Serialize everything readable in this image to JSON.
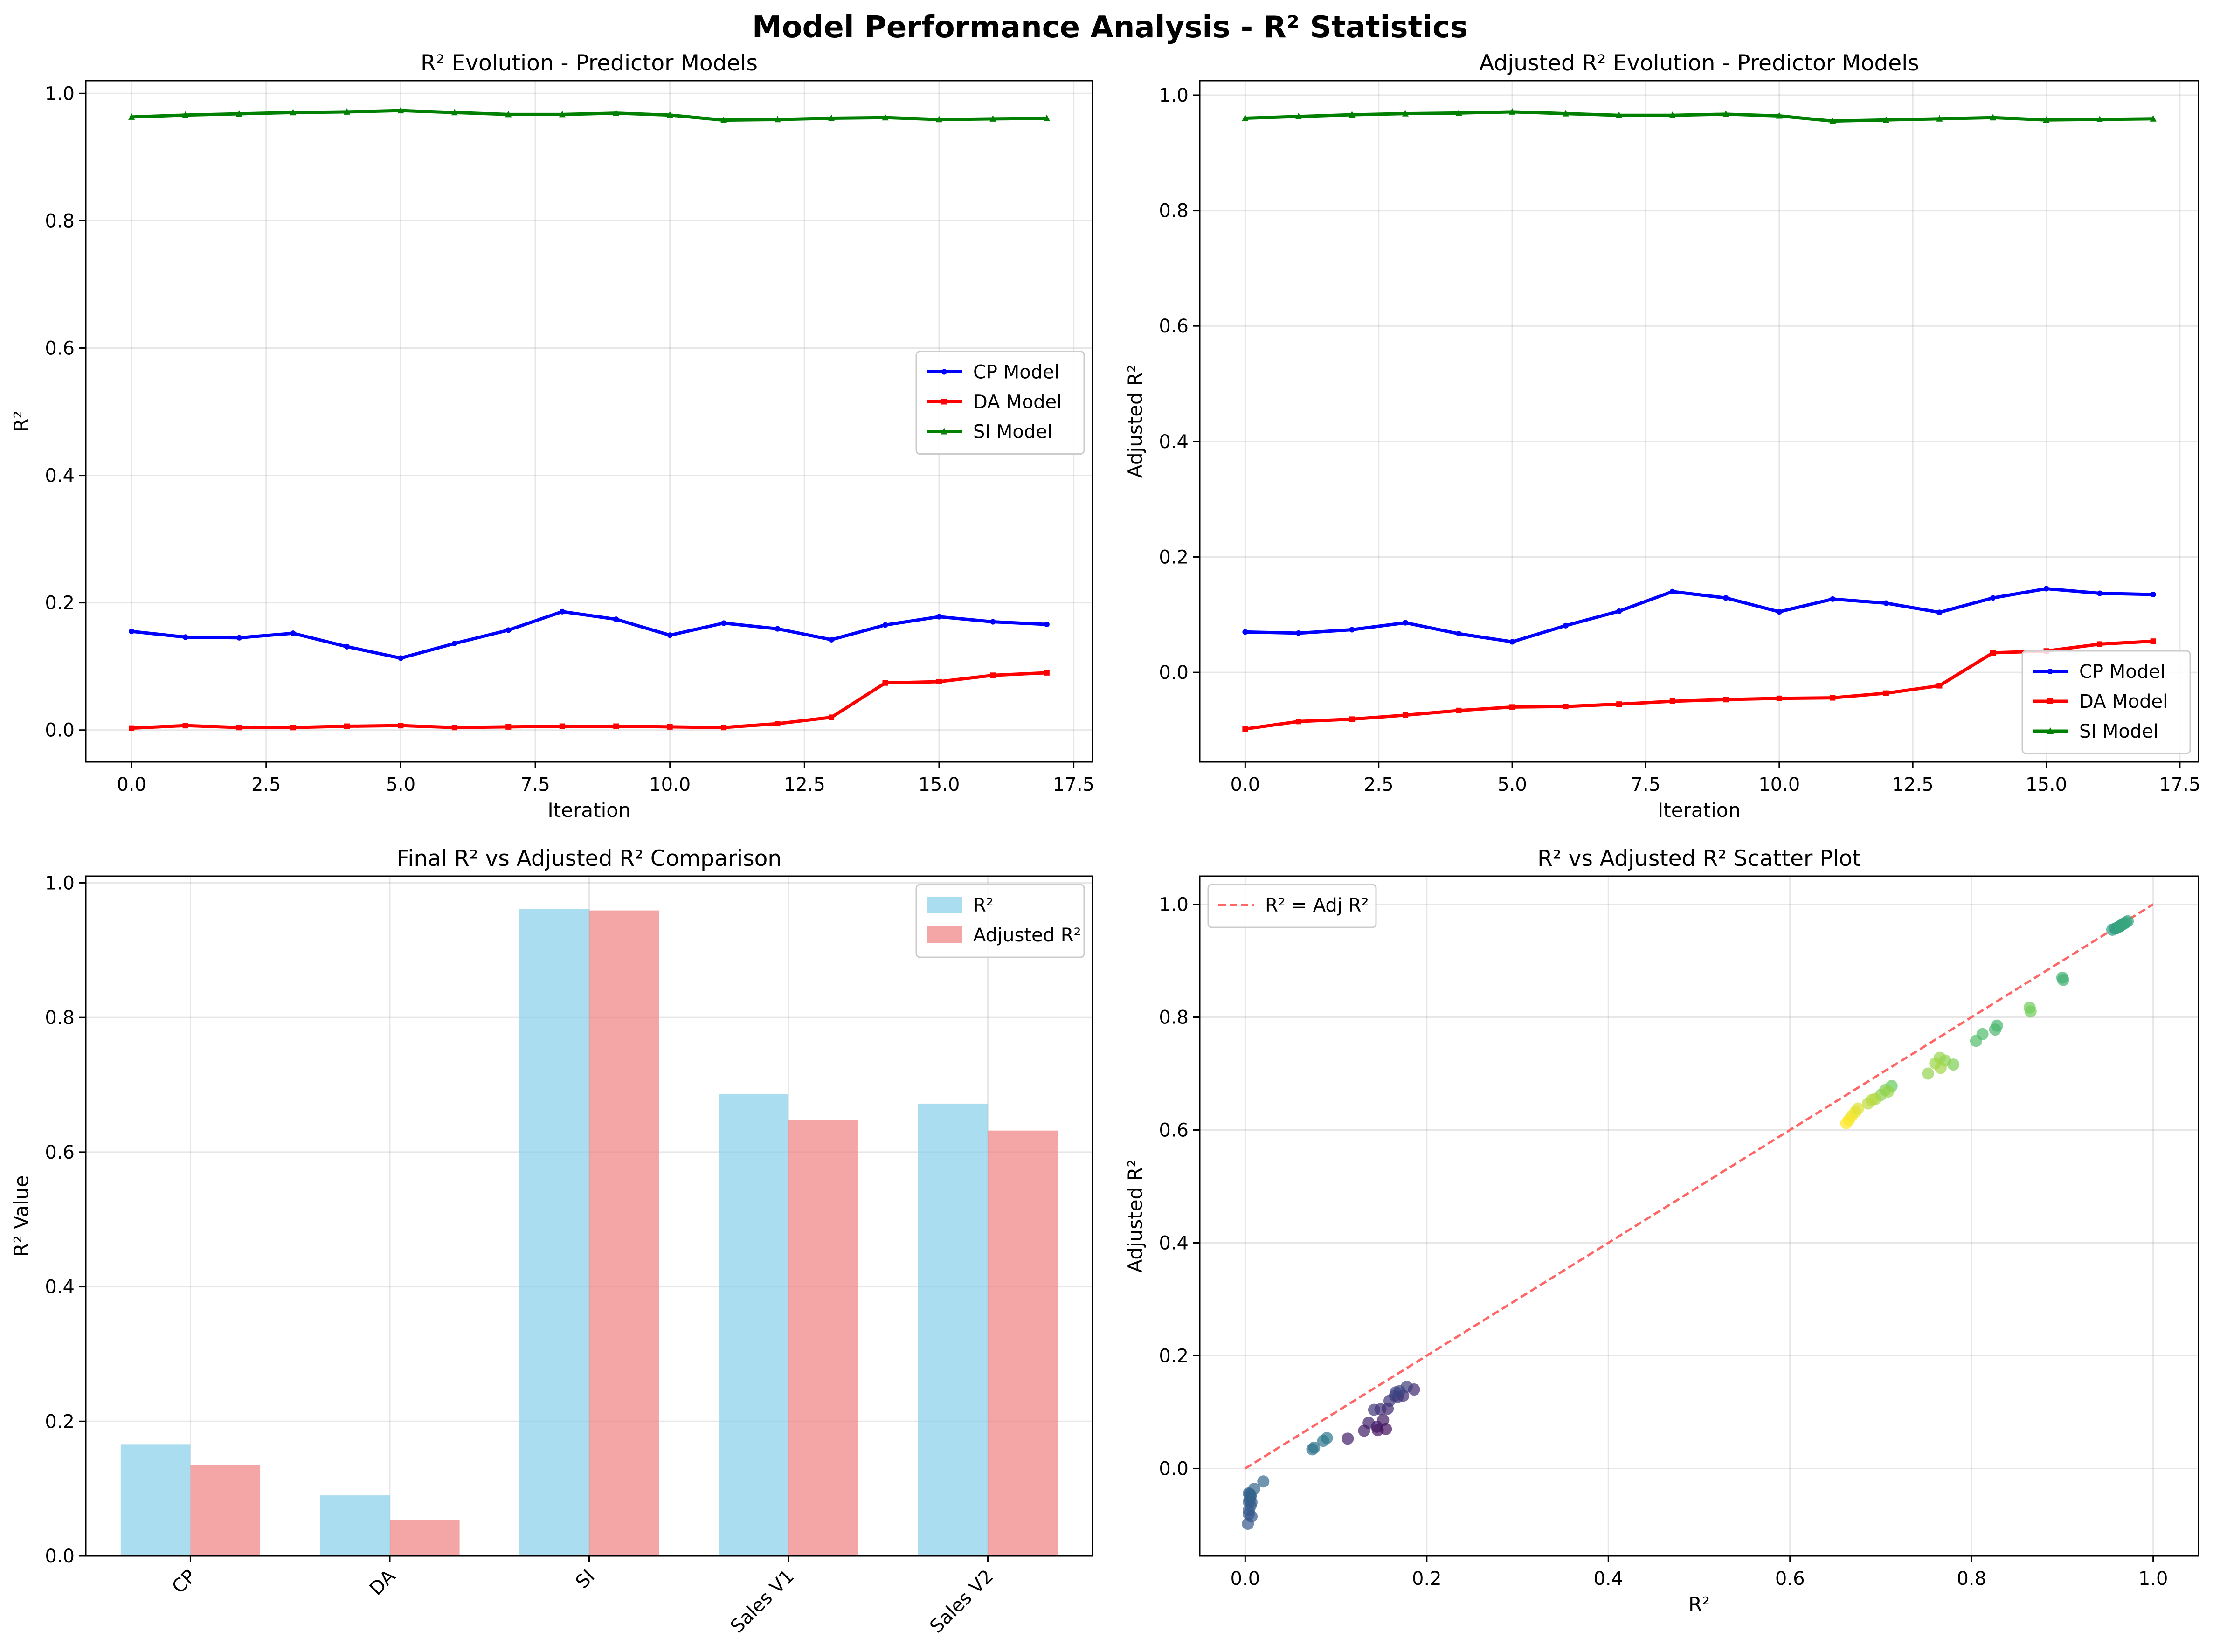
{
  "figure_title": "Model Performance Analysis - R² Statistics",
  "chart_data": [
    {
      "type": "line",
      "title": "R² Evolution - Predictor Models",
      "xlabel": "Iteration",
      "ylabel": "R²",
      "xlim": [
        -0.85,
        17.85
      ],
      "ylim": [
        -0.05,
        1.02
      ],
      "xticks": [
        0.0,
        2.5,
        5.0,
        7.5,
        10.0,
        12.5,
        15.0,
        17.5
      ],
      "xtick_labels": [
        "0.0",
        "2.5",
        "5.0",
        "7.5",
        "10.0",
        "12.5",
        "15.0",
        "17.5"
      ],
      "yticks": [
        0.0,
        0.2,
        0.4,
        0.6,
        0.8,
        1.0
      ],
      "ytick_labels": [
        "0.0",
        "0.2",
        "0.4",
        "0.6",
        "0.8",
        "1.0"
      ],
      "grid": true,
      "legend": "center-right",
      "x": [
        0,
        1,
        2,
        3,
        4,
        5,
        6,
        7,
        8,
        9,
        10,
        11,
        12,
        13,
        14,
        15,
        16,
        17
      ],
      "series": [
        {
          "name": "CP Model",
          "color": "#0000ff",
          "marker": "circle",
          "values": [
            0.155,
            0.146,
            0.145,
            0.152,
            0.131,
            0.113,
            0.136,
            0.157,
            0.186,
            0.174,
            0.149,
            0.168,
            0.159,
            0.142,
            0.165,
            0.178,
            0.17,
            0.166
          ]
        },
        {
          "name": "DA Model",
          "color": "#ff0000",
          "marker": "square",
          "values": [
            0.003,
            0.007,
            0.004,
            0.004,
            0.006,
            0.007,
            0.004,
            0.005,
            0.006,
            0.006,
            0.005,
            0.004,
            0.01,
            0.02,
            0.074,
            0.076,
            0.086,
            0.09
          ]
        },
        {
          "name": "SI Model",
          "color": "#008000",
          "marker": "triangle",
          "values": [
            0.963,
            0.966,
            0.968,
            0.97,
            0.971,
            0.973,
            0.97,
            0.967,
            0.967,
            0.969,
            0.966,
            0.958,
            0.959,
            0.961,
            0.962,
            0.959,
            0.96,
            0.961
          ]
        }
      ]
    },
    {
      "type": "line",
      "title": "Adjusted R² Evolution - Predictor Models",
      "xlabel": "Iteration",
      "ylabel": "Adjusted R²",
      "xlim": [
        -0.85,
        17.85
      ],
      "ylim": [
        -0.155,
        1.025
      ],
      "xticks": [
        0.0,
        2.5,
        5.0,
        7.5,
        10.0,
        12.5,
        15.0,
        17.5
      ],
      "xtick_labels": [
        "0.0",
        "2.5",
        "5.0",
        "7.5",
        "10.0",
        "12.5",
        "15.0",
        "17.5"
      ],
      "yticks": [
        0.0,
        0.2,
        0.4,
        0.6,
        0.8,
        1.0
      ],
      "ytick_labels": [
        "0.0",
        "0.2",
        "0.4",
        "0.6",
        "0.8",
        "1.0"
      ],
      "grid": true,
      "legend": "lower-right",
      "x": [
        0,
        1,
        2,
        3,
        4,
        5,
        6,
        7,
        8,
        9,
        10,
        11,
        12,
        13,
        14,
        15,
        16,
        17
      ],
      "series": [
        {
          "name": "CP Model",
          "color": "#0000ff",
          "marker": "circle",
          "values": [
            0.07,
            0.068,
            0.074,
            0.086,
            0.067,
            0.053,
            0.081,
            0.106,
            0.14,
            0.129,
            0.105,
            0.127,
            0.12,
            0.104,
            0.129,
            0.145,
            0.137,
            0.135
          ]
        },
        {
          "name": "DA Model",
          "color": "#ff0000",
          "marker": "square",
          "values": [
            -0.098,
            -0.085,
            -0.081,
            -0.074,
            -0.066,
            -0.06,
            -0.059,
            -0.055,
            -0.05,
            -0.047,
            -0.045,
            -0.044,
            -0.036,
            -0.023,
            0.034,
            0.037,
            0.049,
            0.054
          ]
        },
        {
          "name": "SI Model",
          "color": "#008000",
          "marker": "triangle",
          "values": [
            0.96,
            0.963,
            0.966,
            0.968,
            0.969,
            0.971,
            0.968,
            0.965,
            0.965,
            0.967,
            0.964,
            0.955,
            0.957,
            0.959,
            0.961,
            0.957,
            0.958,
            0.959
          ]
        }
      ]
    },
    {
      "type": "bar",
      "title": "Final R² vs Adjusted R² Comparison",
      "xlabel": "",
      "ylabel": "R² Value",
      "ylim": [
        0.0,
        1.01
      ],
      "yticks": [
        0.0,
        0.2,
        0.4,
        0.6,
        0.8,
        1.0
      ],
      "ytick_labels": [
        "0.0",
        "0.2",
        "0.4",
        "0.6",
        "0.8",
        "1.0"
      ],
      "grid": true,
      "legend": "top-right",
      "categories": [
        "CP",
        "DA",
        "SI",
        "Sales V1",
        "Sales V2"
      ],
      "series": [
        {
          "name": "R²",
          "color": "#87ceeb",
          "values": [
            0.166,
            0.09,
            0.961,
            0.686,
            0.672
          ]
        },
        {
          "name": "Adjusted R²",
          "color": "#f08080",
          "values": [
            0.135,
            0.054,
            0.959,
            0.647,
            0.632
          ]
        }
      ]
    },
    {
      "type": "scatter",
      "title": "R² vs Adjusted R² Scatter Plot",
      "xlabel": "R²",
      "ylabel": "Adjusted R²",
      "xlim": [
        -0.05,
        1.05
      ],
      "ylim": [
        -0.155,
        1.05
      ],
      "xticks": [
        0.0,
        0.2,
        0.4,
        0.6,
        0.8,
        1.0
      ],
      "xtick_labels": [
        "0.0",
        "0.2",
        "0.4",
        "0.6",
        "0.8",
        "1.0"
      ],
      "yticks": [
        0.0,
        0.2,
        0.4,
        0.6,
        0.8,
        1.0
      ],
      "ytick_labels": [
        "0.0",
        "0.2",
        "0.4",
        "0.6",
        "0.8",
        "1.0"
      ],
      "grid": true,
      "legend": "top-left",
      "reference_line": {
        "name": "R² = Adj R²",
        "color": "#ff6666",
        "x": [
          0.0,
          1.0
        ],
        "y": [
          0.0,
          1.0
        ]
      },
      "colormap": "viridis",
      "points": [
        {
          "x": 0.003,
          "y": -0.098,
          "c": 0.27
        },
        {
          "x": 0.007,
          "y": -0.085,
          "c": 0.28
        },
        {
          "x": 0.004,
          "y": -0.081,
          "c": 0.27
        },
        {
          "x": 0.004,
          "y": -0.074,
          "c": 0.28
        },
        {
          "x": 0.006,
          "y": -0.066,
          "c": 0.29
        },
        {
          "x": 0.007,
          "y": -0.06,
          "c": 0.29
        },
        {
          "x": 0.004,
          "y": -0.059,
          "c": 0.3
        },
        {
          "x": 0.005,
          "y": -0.055,
          "c": 0.3
        },
        {
          "x": 0.006,
          "y": -0.05,
          "c": 0.31
        },
        {
          "x": 0.006,
          "y": -0.047,
          "c": 0.31
        },
        {
          "x": 0.005,
          "y": -0.045,
          "c": 0.32
        },
        {
          "x": 0.004,
          "y": -0.044,
          "c": 0.32
        },
        {
          "x": 0.01,
          "y": -0.036,
          "c": 0.33
        },
        {
          "x": 0.02,
          "y": -0.023,
          "c": 0.34
        },
        {
          "x": 0.074,
          "y": 0.034,
          "c": 0.38
        },
        {
          "x": 0.076,
          "y": 0.037,
          "c": 0.38
        },
        {
          "x": 0.086,
          "y": 0.049,
          "c": 0.39
        },
        {
          "x": 0.09,
          "y": 0.054,
          "c": 0.4
        },
        {
          "x": 0.155,
          "y": 0.07,
          "c": 0.04
        },
        {
          "x": 0.146,
          "y": 0.068,
          "c": 0.05
        },
        {
          "x": 0.145,
          "y": 0.074,
          "c": 0.06
        },
        {
          "x": 0.152,
          "y": 0.086,
          "c": 0.07
        },
        {
          "x": 0.131,
          "y": 0.067,
          "c": 0.08
        },
        {
          "x": 0.113,
          "y": 0.053,
          "c": 0.09
        },
        {
          "x": 0.136,
          "y": 0.081,
          "c": 0.1
        },
        {
          "x": 0.157,
          "y": 0.106,
          "c": 0.11
        },
        {
          "x": 0.186,
          "y": 0.14,
          "c": 0.12
        },
        {
          "x": 0.174,
          "y": 0.129,
          "c": 0.13
        },
        {
          "x": 0.149,
          "y": 0.105,
          "c": 0.14
        },
        {
          "x": 0.168,
          "y": 0.127,
          "c": 0.15
        },
        {
          "x": 0.159,
          "y": 0.12,
          "c": 0.16
        },
        {
          "x": 0.142,
          "y": 0.104,
          "c": 0.17
        },
        {
          "x": 0.165,
          "y": 0.129,
          "c": 0.18
        },
        {
          "x": 0.178,
          "y": 0.145,
          "c": 0.19
        },
        {
          "x": 0.17,
          "y": 0.137,
          "c": 0.2
        },
        {
          "x": 0.166,
          "y": 0.135,
          "c": 0.21
        },
        {
          "x": 0.955,
          "y": 0.955,
          "c": 0.55
        },
        {
          "x": 0.958,
          "y": 0.957,
          "c": 0.55
        },
        {
          "x": 0.96,
          "y": 0.958,
          "c": 0.56
        },
        {
          "x": 0.962,
          "y": 0.96,
          "c": 0.56
        },
        {
          "x": 0.964,
          "y": 0.962,
          "c": 0.57
        },
        {
          "x": 0.966,
          "y": 0.964,
          "c": 0.57
        },
        {
          "x": 0.968,
          "y": 0.966,
          "c": 0.58
        },
        {
          "x": 0.97,
          "y": 0.968,
          "c": 0.58
        },
        {
          "x": 0.972,
          "y": 0.97,
          "c": 0.59
        },
        {
          "x": 0.963,
          "y": 0.961,
          "c": 0.59
        },
        {
          "x": 0.9,
          "y": 0.87,
          "c": 0.64
        },
        {
          "x": 0.901,
          "y": 0.866,
          "c": 0.64
        },
        {
          "x": 0.828,
          "y": 0.785,
          "c": 0.66
        },
        {
          "x": 0.826,
          "y": 0.778,
          "c": 0.67
        },
        {
          "x": 0.812,
          "y": 0.77,
          "c": 0.69
        },
        {
          "x": 0.805,
          "y": 0.758,
          "c": 0.7
        },
        {
          "x": 0.864,
          "y": 0.817,
          "c": 0.78
        },
        {
          "x": 0.865,
          "y": 0.81,
          "c": 0.78
        },
        {
          "x": 0.78,
          "y": 0.716,
          "c": 0.8
        },
        {
          "x": 0.771,
          "y": 0.723,
          "c": 0.82
        },
        {
          "x": 0.765,
          "y": 0.728,
          "c": 0.84
        },
        {
          "x": 0.76,
          "y": 0.718,
          "c": 0.85
        },
        {
          "x": 0.752,
          "y": 0.7,
          "c": 0.83
        },
        {
          "x": 0.766,
          "y": 0.71,
          "c": 0.86
        },
        {
          "x": 0.712,
          "y": 0.678,
          "c": 0.76
        },
        {
          "x": 0.705,
          "y": 0.671,
          "c": 0.8
        },
        {
          "x": 0.7,
          "y": 0.662,
          "c": 0.82
        },
        {
          "x": 0.694,
          "y": 0.655,
          "c": 0.87
        },
        {
          "x": 0.686,
          "y": 0.647,
          "c": 0.9
        },
        {
          "x": 0.69,
          "y": 0.653,
          "c": 0.89
        },
        {
          "x": 0.672,
          "y": 0.632,
          "c": 0.97
        },
        {
          "x": 0.668,
          "y": 0.625,
          "c": 0.98
        },
        {
          "x": 0.665,
          "y": 0.618,
          "c": 0.99
        },
        {
          "x": 0.662,
          "y": 0.612,
          "c": 1.0
        },
        {
          "x": 0.675,
          "y": 0.638,
          "c": 0.95
        },
        {
          "x": 0.708,
          "y": 0.668,
          "c": 0.84
        }
      ]
    }
  ]
}
